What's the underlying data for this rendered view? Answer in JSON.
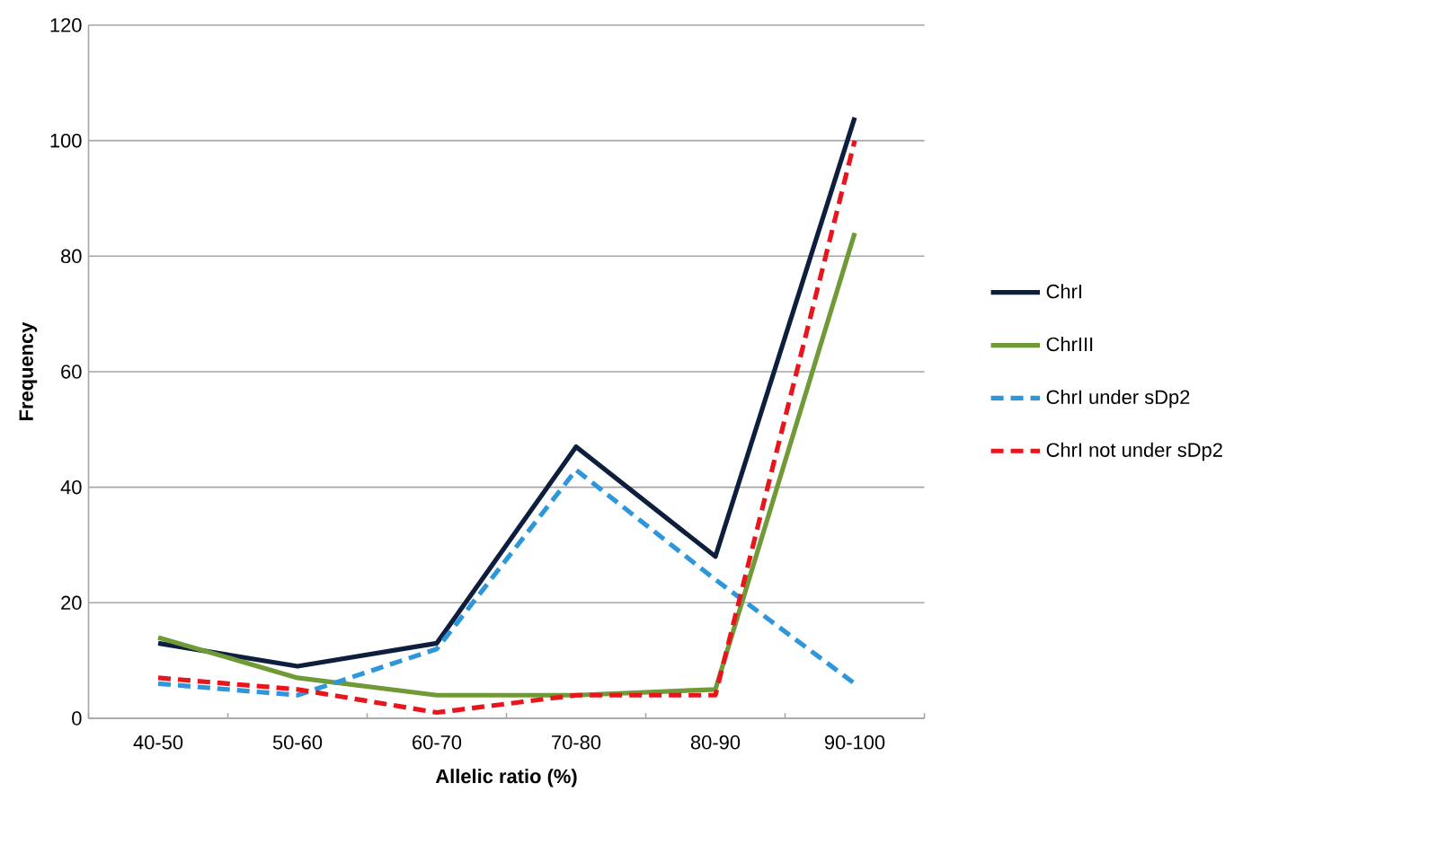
{
  "chart_data": {
    "type": "line",
    "xlabel": "Allelic ratio (%)",
    "ylabel": "Frequency",
    "categories": [
      "40-50",
      "50-60",
      "60-70",
      "70-80",
      "80-90",
      "90-100"
    ],
    "series": [
      {
        "name": "ChrI",
        "color": "#0d1f3c",
        "line_style": "solid",
        "values": [
          13,
          9,
          13,
          47,
          28,
          104
        ]
      },
      {
        "name": "ChrIII",
        "color": "#6f9a37",
        "line_style": "solid",
        "values": [
          14,
          7,
          4,
          4,
          5,
          84
        ]
      },
      {
        "name": "ChrI under sDp2",
        "color": "#2e97dc",
        "line_style": "dashed",
        "values": [
          6,
          4,
          12,
          43,
          24,
          6
        ]
      },
      {
        "name": "ChrI not under sDp2",
        "color": "#e8161c",
        "line_style": "dashed",
        "values": [
          7,
          5,
          1,
          4,
          4,
          100
        ]
      }
    ],
    "ylim": [
      0,
      120
    ],
    "yticks": [
      0,
      20,
      40,
      60,
      80,
      100,
      120
    ],
    "grid": "y",
    "legend": "right",
    "marker": "none"
  }
}
